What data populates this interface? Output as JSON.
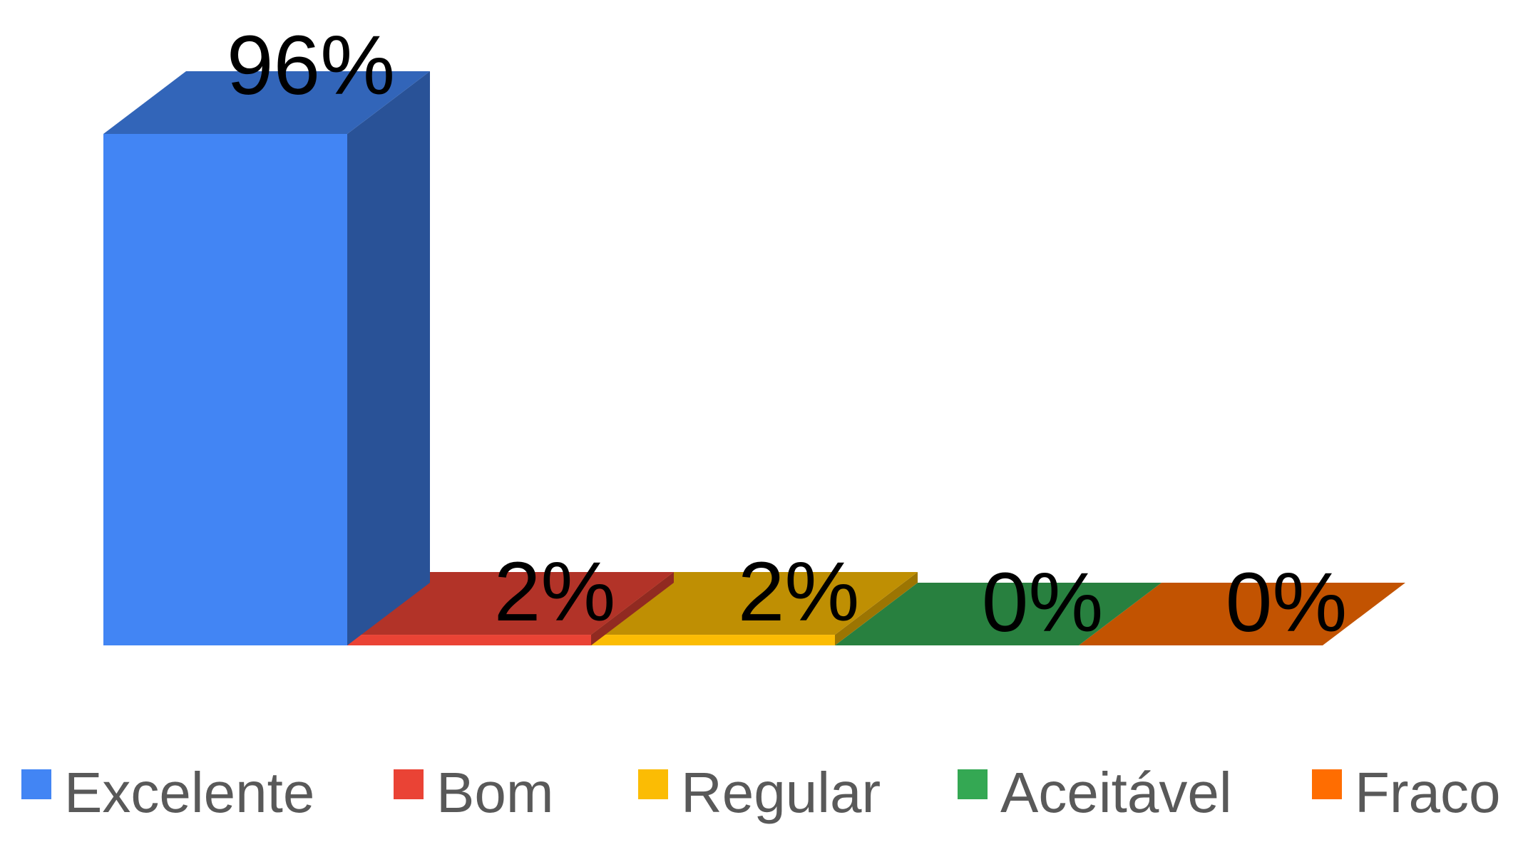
{
  "chart_data": {
    "type": "bar",
    "style": "3d",
    "categories": [
      "Excelente",
      "Bom",
      "Regular",
      "Aceitável",
      "Fraco"
    ],
    "values": [
      96,
      2,
      2,
      0,
      0
    ],
    "data_labels": [
      "96%",
      "2%",
      "2%",
      "0%",
      "0%"
    ],
    "colors": [
      "#4285F4",
      "#EA4335",
      "#FBBC04",
      "#34A853",
      "#FF6D01"
    ],
    "ylim": [
      0,
      100
    ],
    "grid": false,
    "legend": {
      "position": "bottom",
      "entries": [
        "Excelente",
        "Bom",
        "Regular",
        "Aceitável",
        "Fraco"
      ]
    }
  }
}
